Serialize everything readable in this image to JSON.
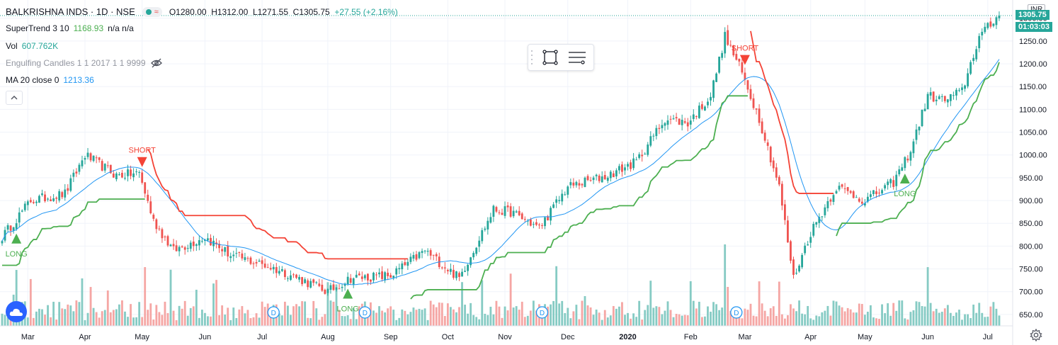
{
  "header": {
    "symbol": "BALKRISHNA INDS · 1D · NSE",
    "open": "O1280.00",
    "high": "H1312.00",
    "low": "L1271.55",
    "close": "C1305.75",
    "change": "+27.55 (+2.16%)"
  },
  "indicators": {
    "supertrend": {
      "name": "SuperTrend 3 10",
      "value": "1168.93",
      "extra": "n/a n/a"
    },
    "volume": {
      "name": "Vol",
      "value": "607.762K"
    },
    "engulfing": {
      "name": "Engulfing Candles 1 1 2017 1 1 9999"
    },
    "ma": {
      "name": "MA 20 close 0",
      "value": "1213.36"
    }
  },
  "axis": {
    "currency": "INR",
    "last_price": "1305.75",
    "countdown": "01:03:03"
  },
  "colors": {
    "up": "#26a69a",
    "down": "#ef5350",
    "supertrend_up": "#4caf50",
    "supertrend_down": "#f44336",
    "ma": "#2196f3",
    "grid": "#f0f3fa",
    "vol_up": "#86cbc4",
    "vol_down": "#f5a6a4",
    "last_price": "#26a69a",
    "countdown": "#26a69a"
  },
  "icons": {
    "alert": "eye-off-icon",
    "collapse": "chevron-up-icon",
    "rect_tool": "rectangle-tool-icon",
    "settings_tool": "line-settings-icon",
    "settings": "gear-icon",
    "logo": "cloud-logo-icon",
    "dividend": "dividend-marker-icon"
  },
  "chart_data": {
    "type": "candlestick",
    "y_ticks": [
      650,
      700,
      750,
      800,
      850,
      900,
      950,
      1000,
      1050,
      1100,
      1150,
      1200,
      1250,
      1300
    ],
    "ylim": [
      625,
      1340
    ],
    "x_ticks": [
      {
        "label": "Mar",
        "i": 9
      },
      {
        "label": "Apr",
        "i": 29
      },
      {
        "label": "May",
        "i": 49
      },
      {
        "label": "Jun",
        "i": 71
      },
      {
        "label": "Jul",
        "i": 91
      },
      {
        "label": "Aug",
        "i": 114
      },
      {
        "label": "Sep",
        "i": 136
      },
      {
        "label": "Oct",
        "i": 156
      },
      {
        "label": "Nov",
        "i": 176
      },
      {
        "label": "Dec",
        "i": 198
      },
      {
        "label": "2020",
        "i": 219
      },
      {
        "label": "Feb",
        "i": 241
      },
      {
        "label": "Mar",
        "i": 260
      },
      {
        "label": "Apr",
        "i": 283
      },
      {
        "label": "May",
        "i": 302
      },
      {
        "label": "Jun",
        "i": 324
      },
      {
        "label": "Jul",
        "i": 345
      }
    ],
    "bars": 350,
    "price_anchors": [
      [
        0,
        820
      ],
      [
        10,
        900
      ],
      [
        22,
        915
      ],
      [
        29,
        1000
      ],
      [
        40,
        955
      ],
      [
        48,
        960
      ],
      [
        53,
        855
      ],
      [
        60,
        790
      ],
      [
        71,
        820
      ],
      [
        80,
        780
      ],
      [
        91,
        760
      ],
      [
        100,
        740
      ],
      [
        114,
        700
      ],
      [
        122,
        730
      ],
      [
        136,
        735
      ],
      [
        148,
        790
      ],
      [
        160,
        730
      ],
      [
        172,
        880
      ],
      [
        178,
        875
      ],
      [
        188,
        840
      ],
      [
        198,
        930
      ],
      [
        212,
        955
      ],
      [
        222,
        985
      ],
      [
        232,
        1080
      ],
      [
        240,
        1070
      ],
      [
        248,
        1130
      ],
      [
        253,
        1260
      ],
      [
        258,
        1195
      ],
      [
        265,
        1080
      ],
      [
        272,
        930
      ],
      [
        277,
        730
      ],
      [
        283,
        830
      ],
      [
        292,
        930
      ],
      [
        302,
        900
      ],
      [
        312,
        940
      ],
      [
        318,
        1010
      ],
      [
        324,
        1130
      ],
      [
        330,
        1120
      ],
      [
        336,
        1140
      ],
      [
        342,
        1260
      ],
      [
        349,
        1305
      ]
    ],
    "signals": [
      {
        "type": "LONG",
        "i": 5
      },
      {
        "type": "SHORT",
        "i": 49
      },
      {
        "type": "LONG",
        "i": 121
      },
      {
        "type": "SHORT",
        "i": 260
      },
      {
        "type": "LONG",
        "i": 316
      }
    ],
    "dividends": [
      95,
      127,
      189,
      257
    ],
    "series": [
      {
        "name": "SuperTrend 3 10",
        "last": 1168.93
      },
      {
        "name": "MA 20 close 0",
        "last": 1213.36
      },
      {
        "name": "Vol",
        "last": "607.762K"
      }
    ],
    "last_price": 1305.75
  }
}
